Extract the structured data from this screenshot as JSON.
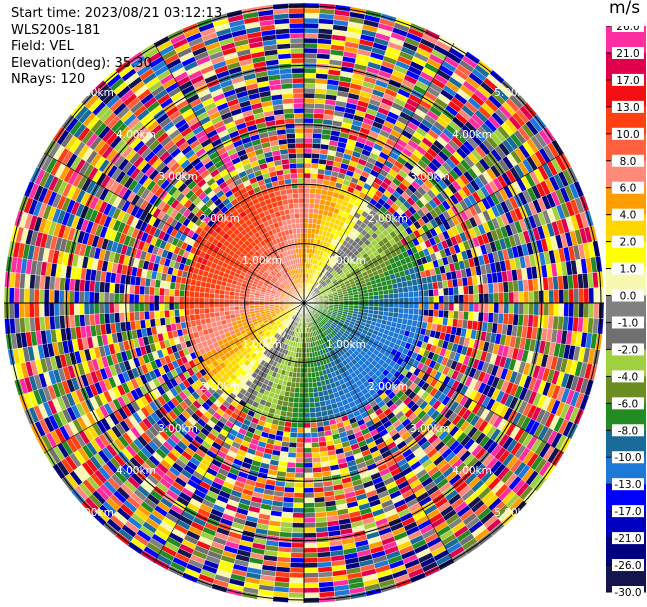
{
  "info": {
    "start_time": "Start time: 2023/08/21 03:12:13",
    "instrument": "WLS200s-181",
    "field": "Field: VEL",
    "elevation": "Elevation(deg): 35.30",
    "nrays": "NRays: 120"
  },
  "colorbar": {
    "unit": "m/s",
    "ticks": [
      "26.0",
      "21.0",
      "17.0",
      "13.0",
      "10.0",
      "8.0",
      "6.0",
      "4.0",
      "2.0",
      "1.0",
      "0.0",
      "-1.0",
      "-2.0",
      "-4.0",
      "-6.0",
      "-8.0",
      "-10.0",
      "-13.0",
      "-17.0",
      "-21.0",
      "-26.0",
      "-30.0"
    ],
    "colors": [
      "#ff2ea0",
      "#e0004e",
      "#f40f13",
      "#ff4010",
      "#ff6040",
      "#ff8a7a",
      "#ff9d00",
      "#ffd700",
      "#ffff00",
      "#f8f8b0",
      "#808080",
      "#707070",
      "#a0d040",
      "#6b8e23",
      "#228b22",
      "#1a6a9a",
      "#1e78d8",
      "#0000ff",
      "#0000c0",
      "#000080",
      "#141450"
    ]
  },
  "chart_data": {
    "type": "ppi_polar",
    "field": "VEL",
    "units": "m/s",
    "nrays": 120,
    "elevation_deg": 35.3,
    "range_ring_labels": [
      "1.00km",
      "2.00km",
      "3.00km",
      "4.00km",
      "5.00km"
    ],
    "range_rings_km": [
      1,
      2,
      3,
      4,
      5
    ],
    "valid_max_range_km": 2.1,
    "description_of_field": {
      "quadrant_NW": "positive velocities 2 to 13 m/s (orange/red/yellow)",
      "quadrant_NE": "negative velocities -2 to -8 m/s (green/gray)",
      "quadrant_SE": "negative velocities -10 to -17 m/s (blue)",
      "quadrant_SW": "near zero to -6 m/s (yellow/green/gray)",
      "beyond_2km": "noise (random colors across full scale)"
    }
  }
}
